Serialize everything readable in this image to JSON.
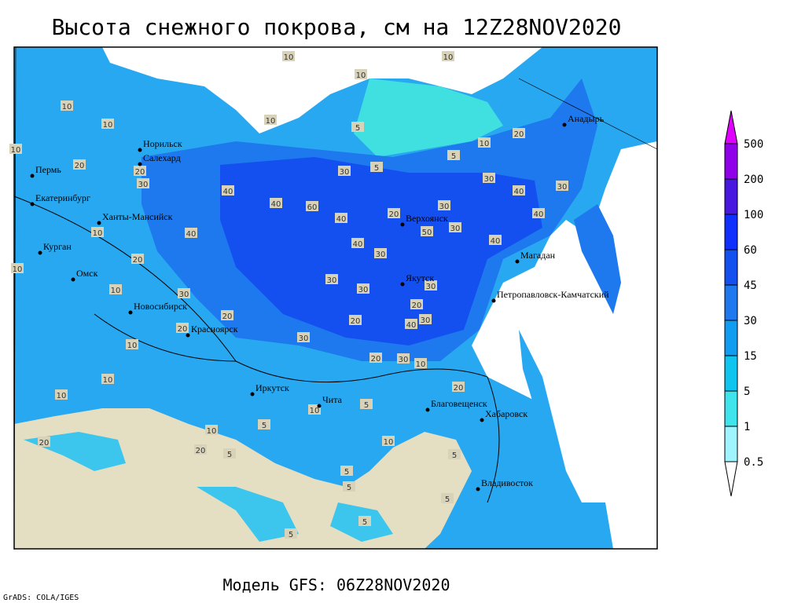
{
  "title": "Высота снежного покрова, см на 12Z28NOV2020",
  "subtitle": "Модель GFS: 06Z28NOV2020",
  "credit": "GrADS: COLA/IGES",
  "cities": [
    "Норильск",
    "Салехард",
    "Пермь",
    "Екатеринбург",
    "Ханты-Мансийск",
    "Курган",
    "Омск",
    "Новосибирск",
    "Красноярск",
    "Иркутск",
    "Чита",
    "Благовещенск",
    "Хабаровск",
    "Владивосток",
    "Якутск",
    "Верхоянск",
    "Магадан",
    "Петропавловск-Камчатский",
    "Анадырь"
  ],
  "contour_labels": [
    10,
    10,
    10,
    10,
    10,
    10,
    5,
    10,
    20,
    20,
    30,
    40,
    40,
    60,
    40,
    20,
    50,
    30,
    30,
    40,
    40,
    30,
    40,
    10,
    20,
    40,
    30,
    40,
    30,
    30,
    20,
    30,
    10,
    10,
    30,
    20,
    20,
    30,
    20,
    40,
    30,
    20,
    30,
    10,
    10,
    10,
    10,
    10,
    20,
    20,
    5,
    10,
    5,
    5,
    5,
    5,
    5,
    20,
    5,
    5,
    5,
    10,
    10,
    20,
    30,
    5,
    5,
    30
  ],
  "legend": {
    "levels": [
      0.5,
      1,
      5,
      15,
      30,
      45,
      60,
      100,
      200,
      500
    ],
    "colors": [
      "#ffffff",
      "#a0f4ff",
      "#40e4ec",
      "#10c4f0",
      "#109cf0",
      "#1e78ee",
      "#1450f0",
      "#1030ff",
      "#4818e0",
      "#9000e8",
      "#e000ff"
    ]
  }
}
